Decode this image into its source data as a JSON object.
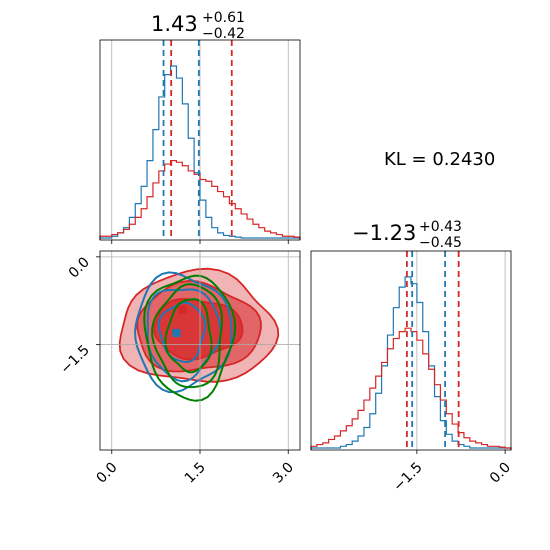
{
  "colors": {
    "blue": "#1f77b4",
    "red": "#d62728",
    "green": "#008000",
    "red_fill": "#f0a0a6",
    "grid": "#b0b0b0"
  },
  "annotation": {
    "kl": "KL = 0.2430"
  },
  "chart_data": [
    {
      "type": "histogram",
      "panel": "top-left",
      "title": {
        "value": "1.43",
        "plus": "+0.61",
        "minus": "−0.42"
      },
      "xlim": [
        -0.2,
        3.2
      ],
      "bins": [
        -0.2,
        -0.1,
        0.0,
        0.1,
        0.2,
        0.3,
        0.4,
        0.5,
        0.6,
        0.7,
        0.8,
        0.9,
        1.0,
        1.1,
        1.2,
        1.3,
        1.4,
        1.5,
        1.6,
        1.7,
        1.8,
        1.9,
        2.0,
        2.1,
        2.2,
        2.3,
        2.4,
        2.5,
        2.6,
        2.7,
        2.8,
        2.9,
        3.0,
        3.1,
        3.2
      ],
      "series": [
        {
          "color": "blue",
          "values": [
            0,
            0,
            0.01,
            0.03,
            0.06,
            0.12,
            0.2,
            0.3,
            0.45,
            0.63,
            0.82,
            0.95,
            1.0,
            0.93,
            0.78,
            0.58,
            0.38,
            0.22,
            0.12,
            0.06,
            0.03,
            0.015,
            0.01,
            0.005,
            0,
            0,
            0,
            0,
            0,
            0,
            0,
            0,
            0,
            0
          ]
        },
        {
          "color": "red",
          "values": [
            0.01,
            0.01,
            0.02,
            0.03,
            0.05,
            0.08,
            0.12,
            0.17,
            0.24,
            0.32,
            0.39,
            0.43,
            0.45,
            0.44,
            0.42,
            0.39,
            0.37,
            0.34,
            0.33,
            0.3,
            0.27,
            0.24,
            0.2,
            0.17,
            0.14,
            0.11,
            0.08,
            0.06,
            0.04,
            0.03,
            0.02,
            0.01,
            0.01,
            0.005
          ]
        }
      ],
      "quantile_lines": [
        {
          "color": "blue",
          "values": [
            0.88,
            1.48
          ]
        },
        {
          "color": "red",
          "values": [
            1.01,
            2.04
          ]
        }
      ]
    },
    {
      "type": "contour",
      "panel": "bottom-left",
      "xlim": [
        -0.2,
        3.2
      ],
      "ylim": [
        -3.3,
        0.1
      ],
      "xticks": [
        0.0,
        1.5,
        3.0
      ],
      "xtick_labels": [
        "0.0",
        "1.5",
        "3.0"
      ],
      "yticks": [
        0.0,
        -1.5
      ],
      "ytick_labels": [
        "0.0",
        "−1.5"
      ],
      "truth": {
        "x": 1.5,
        "y": -1.5
      },
      "markers": [
        {
          "color": "blue",
          "x": 1.1,
          "y": -1.3
        },
        {
          "color": "red",
          "x": 1.2,
          "y": -0.9
        }
      ],
      "series": [
        {
          "color": "red",
          "center": [
            1.45,
            -1.22
          ],
          "radii": [
            [
              0.75,
              0.5
            ],
            [
              1.05,
              0.75
            ],
            [
              1.32,
              0.95
            ]
          ]
        },
        {
          "color": "blue",
          "center": [
            1.2,
            -1.28
          ],
          "radii": [
            [
              0.38,
              0.5
            ],
            [
              0.62,
              0.78
            ],
            [
              0.82,
              0.98
            ]
          ]
        },
        {
          "color": "green",
          "center": [
            1.32,
            -1.35
          ],
          "radii": [
            [
              0.38,
              0.62
            ],
            [
              0.58,
              0.88
            ],
            [
              0.75,
              1.05
            ]
          ]
        }
      ]
    },
    {
      "type": "histogram",
      "panel": "bottom-right",
      "title": {
        "value": "−1.23",
        "plus": "+0.43",
        "minus": "−0.45"
      },
      "xlim": [
        -3.3,
        0.1
      ],
      "xticks": [
        -1.5,
        0.0
      ],
      "xtick_labels": [
        "−1.5",
        "0.0"
      ],
      "bins": [
        -3.3,
        -3.2,
        -3.1,
        -3.0,
        -2.9,
        -2.8,
        -2.7,
        -2.6,
        -2.5,
        -2.4,
        -2.3,
        -2.2,
        -2.1,
        -2.0,
        -1.9,
        -1.8,
        -1.7,
        -1.6,
        -1.5,
        -1.4,
        -1.3,
        -1.2,
        -1.1,
        -1.0,
        -0.9,
        -0.8,
        -0.7,
        -0.6,
        -0.5,
        -0.4,
        -0.3,
        -0.2,
        -0.1,
        0.0,
        0.1
      ],
      "series": [
        {
          "color": "blue",
          "values": [
            0,
            0,
            0,
            0,
            0,
            0.01,
            0.02,
            0.04,
            0.07,
            0.12,
            0.2,
            0.32,
            0.48,
            0.66,
            0.82,
            0.94,
            1.0,
            0.96,
            0.85,
            0.68,
            0.48,
            0.3,
            0.16,
            0.08,
            0.04,
            0.02,
            0.01,
            0,
            0,
            0,
            0,
            0,
            0,
            0
          ]
        },
        {
          "color": "red",
          "values": [
            0.01,
            0.02,
            0.03,
            0.05,
            0.07,
            0.1,
            0.13,
            0.17,
            0.22,
            0.28,
            0.35,
            0.42,
            0.5,
            0.58,
            0.64,
            0.68,
            0.7,
            0.68,
            0.63,
            0.55,
            0.46,
            0.37,
            0.28,
            0.2,
            0.14,
            0.09,
            0.06,
            0.04,
            0.03,
            0.02,
            0.01,
            0.01,
            0.005,
            0
          ]
        }
      ],
      "quantile_lines": [
        {
          "color": "blue",
          "values": [
            -1.58,
            -1.02
          ]
        },
        {
          "color": "red",
          "values": [
            -1.67,
            -0.79
          ]
        }
      ]
    }
  ]
}
